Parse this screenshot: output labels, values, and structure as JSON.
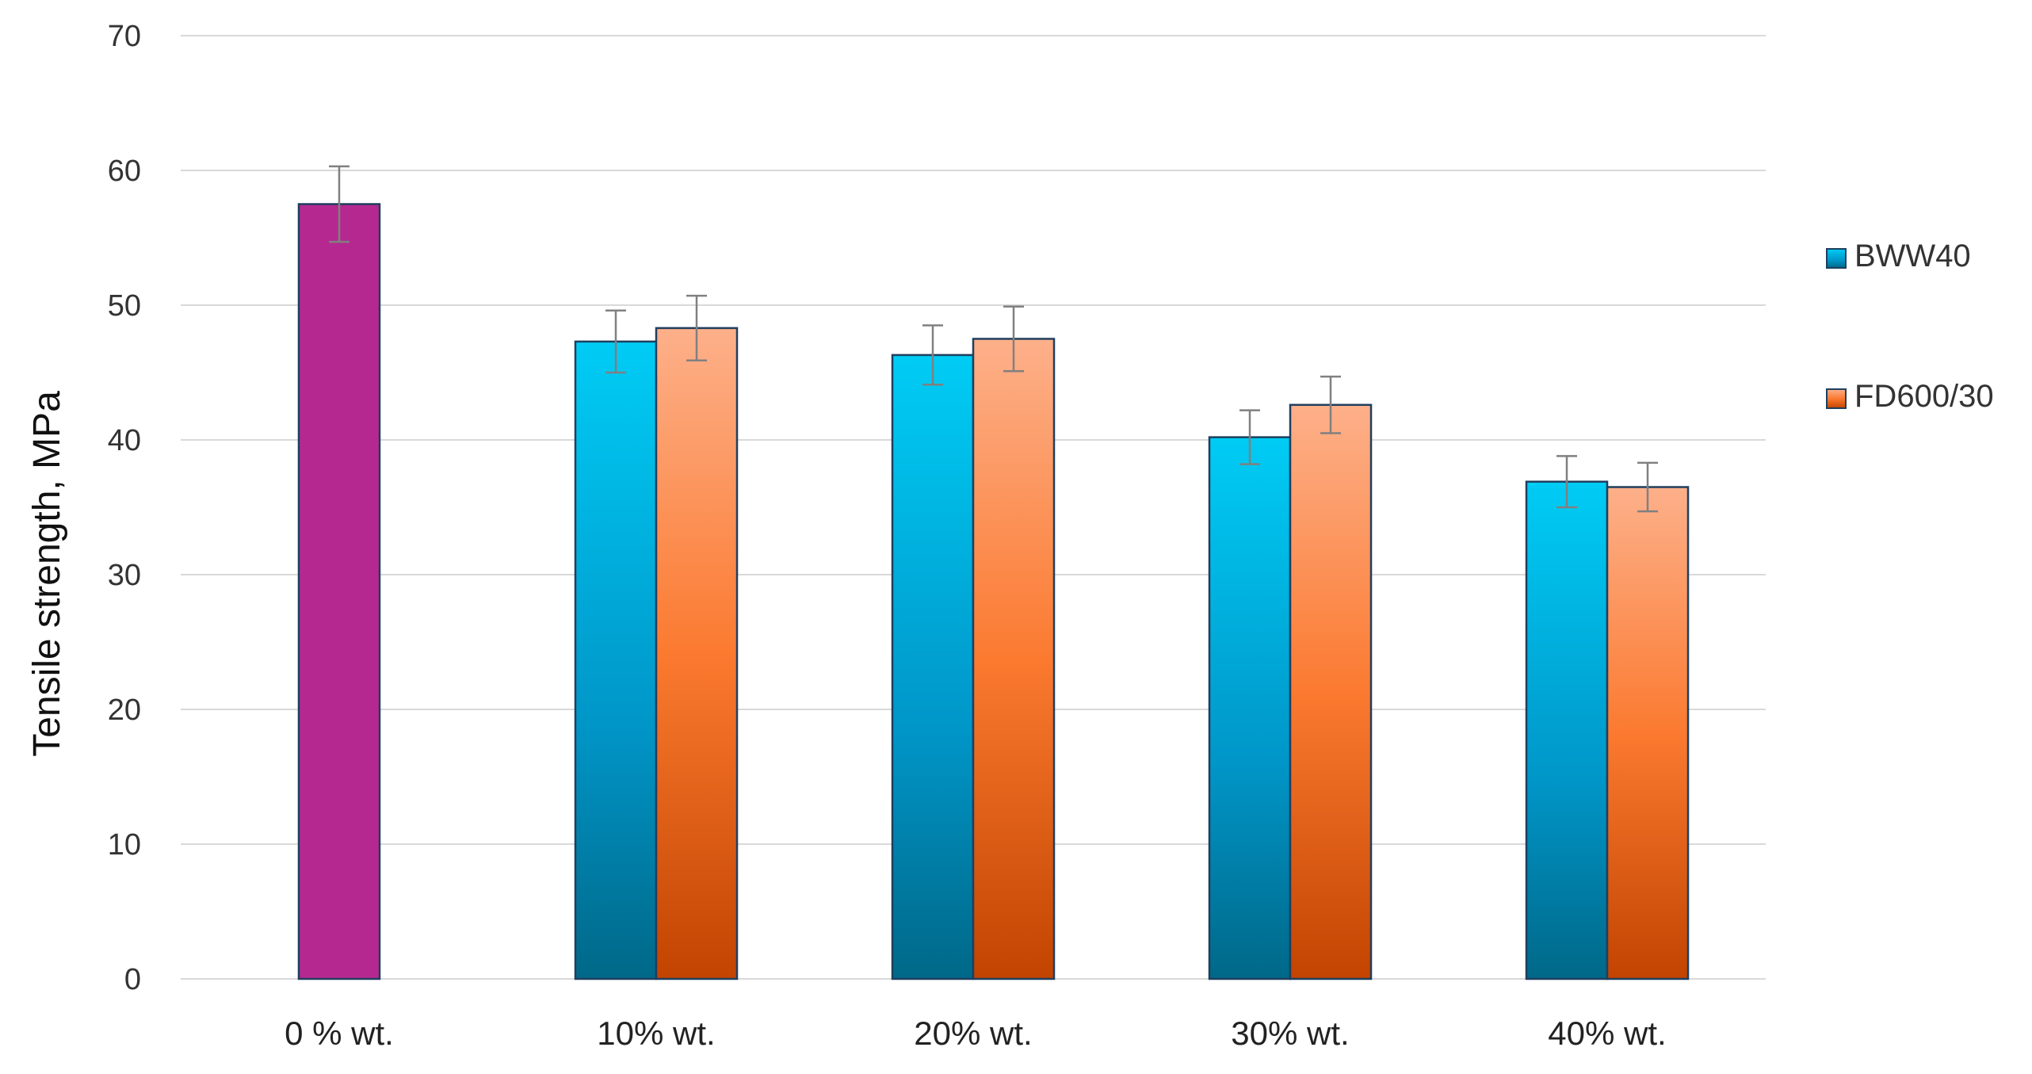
{
  "chart_data": {
    "type": "bar",
    "title": "",
    "xlabel": "",
    "ylabel": "Tensile strength, MPa",
    "ylim": [
      0,
      70
    ],
    "yticks": [
      0,
      10,
      20,
      30,
      40,
      50,
      60,
      70
    ],
    "grid": true,
    "legend_position": "right",
    "categories": [
      "0 % wt.",
      "10% wt.",
      "20% wt.",
      "30% wt.",
      "40% wt."
    ],
    "reference": {
      "category": "0 % wt.",
      "value": 57.5,
      "error": 2.8,
      "color": "#b5288f"
    },
    "series": [
      {
        "name": "BWW40",
        "values": [
          null,
          47.3,
          46.3,
          40.2,
          36.9
        ],
        "errors": [
          null,
          2.3,
          2.2,
          2.0,
          1.9
        ],
        "color_top": "#00ccf5",
        "color_bottom": "#006888"
      },
      {
        "name": "FD600/30",
        "values": [
          null,
          48.3,
          47.5,
          42.6,
          36.5
        ],
        "errors": [
          null,
          2.4,
          2.4,
          2.1,
          1.8
        ],
        "color_top": "#fdb08a",
        "color_mid": "#fb7a30",
        "color_bottom": "#c24400"
      }
    ]
  }
}
